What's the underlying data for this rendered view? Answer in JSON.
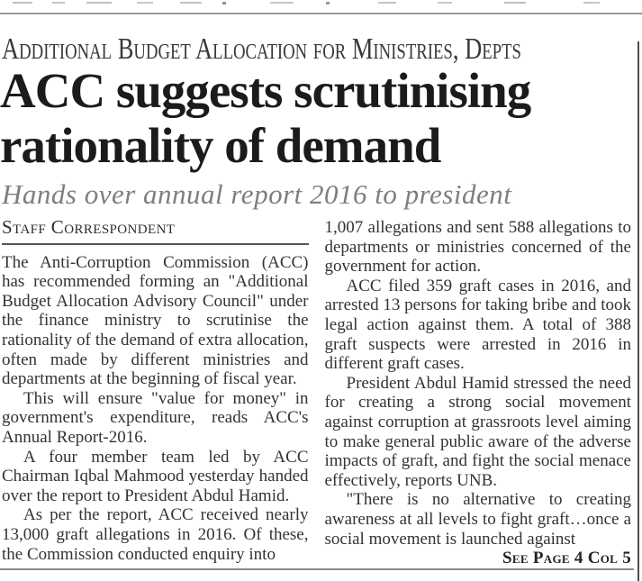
{
  "article": {
    "kicker": "Additional Budget Allocation for Ministries, Depts",
    "headline_lines": [
      "ACC suggests scrutinising",
      "rationality of demand"
    ],
    "headline_full": "ACC suggests scrutinising rationality of demand",
    "subhead": "Hands over annual report 2016 to president",
    "byline": "Staff Correspondent",
    "columns": {
      "left": [
        "The Anti-Corruption Commission (ACC) has recommended forming an \"Additional Budget Allocation Advisory Council\" under the finance ministry to scrutinise the rationality of the demand of extra allocation, often made by different ministries and departments at the beginning of fiscal year.",
        "This will ensure \"value for money\" in government's expenditure, reads ACC's Annual Report-2016.",
        "A four member team led by ACC Chairman Iqbal Mahmood yesterday handed over the report to President Abdul Hamid.",
        "As per the report, ACC received nearly 13,000 graft allegations in 2016. Of these, the Commission conducted enquiry into"
      ],
      "right": [
        "1,007 allegations and sent 588 allegations to departments or ministries concerned of the government for action.",
        "ACC filed 359 graft cases in 2016, and arrested 13 persons for taking bribe and took legal action against them. A total of 388 graft suspects were arrested in 2016 in different graft cases.",
        "President Abdul Hamid stressed the need for creating a strong social movement against corruption at grassroots level aiming to make general public aware of the adverse impacts of graft, and fight the social menace effectively, reports UNB.",
        "\"There is no alternative to creating awareness at all levels to fight graft…once a social movement is launched against"
      ]
    },
    "continuation": "See Page 4 Col 5"
  },
  "colors": {
    "headline_text": "#1b1b1b",
    "kicker_text": "#383838",
    "subhead_text": "#7e7e7e",
    "body_text": "#333333",
    "rule_gray": "#9a9a9a",
    "column_divider": "#4d4d4d"
  }
}
